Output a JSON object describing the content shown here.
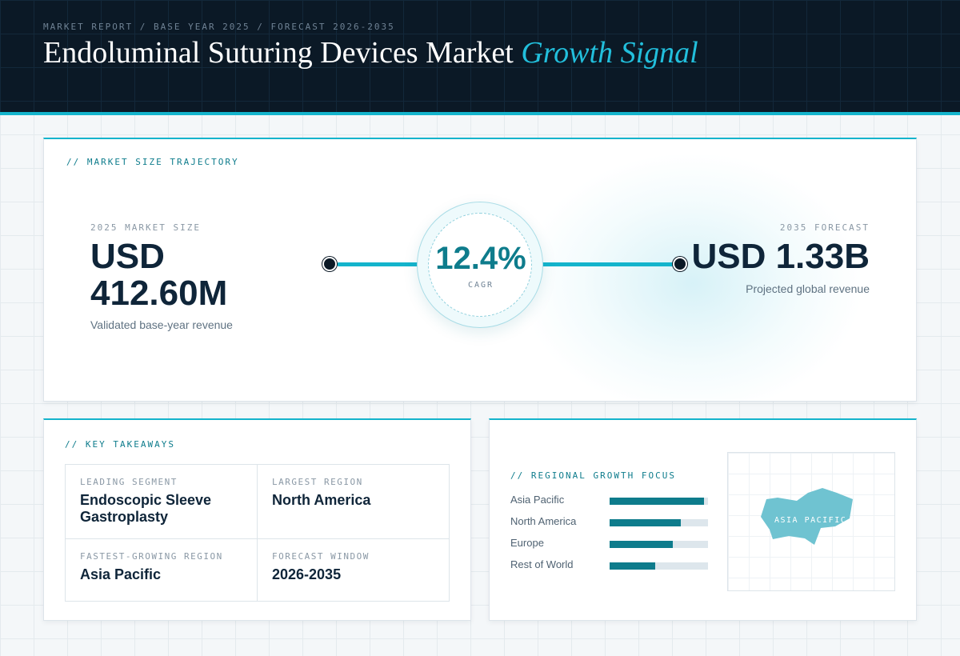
{
  "header": {
    "eyebrow": "MARKET REPORT / BASE YEAR 2025 / FORECAST 2026-2035",
    "title_main": "Endoluminal Suturing Devices Market",
    "title_accent": "Growth Signal"
  },
  "trajectory": {
    "section_label": "// MARKET SIZE TRAJECTORY",
    "base": {
      "label": "2025 MARKET SIZE",
      "value_line1": "USD",
      "value_line2": "412.60M",
      "note": "Validated base-year revenue"
    },
    "cagr": {
      "value": "12.4%",
      "label": "CAGR"
    },
    "forecast": {
      "label": "2035 FORECAST",
      "value": "USD 1.33B",
      "note": "Projected global revenue"
    }
  },
  "takeaways": {
    "section_label": "// KEY TAKEAWAYS",
    "items": [
      {
        "label": "LEADING SEGMENT",
        "value": "Endoscopic Sleeve Gastroplasty"
      },
      {
        "label": "LARGEST REGION",
        "value": "North America"
      },
      {
        "label": "FASTEST-GROWING REGION",
        "value": "Asia Pacific"
      },
      {
        "label": "FORECAST WINDOW",
        "value": "2026-2035"
      }
    ]
  },
  "regional": {
    "section_label": "// REGIONAL GROWTH FOCUS",
    "items": [
      {
        "name": "Asia Pacific",
        "level": 0.96
      },
      {
        "name": "North America",
        "level": 0.72
      },
      {
        "name": "Europe",
        "level": 0.64
      },
      {
        "name": "Rest of World",
        "level": 0.46
      }
    ],
    "map_label": "ASIA PACIFIC",
    "highlight_color": "#6fc3d1"
  },
  "colors": {
    "accent": "#14b4cc",
    "accent_dark": "#0e7c8c",
    "navy": "#0b1926"
  }
}
